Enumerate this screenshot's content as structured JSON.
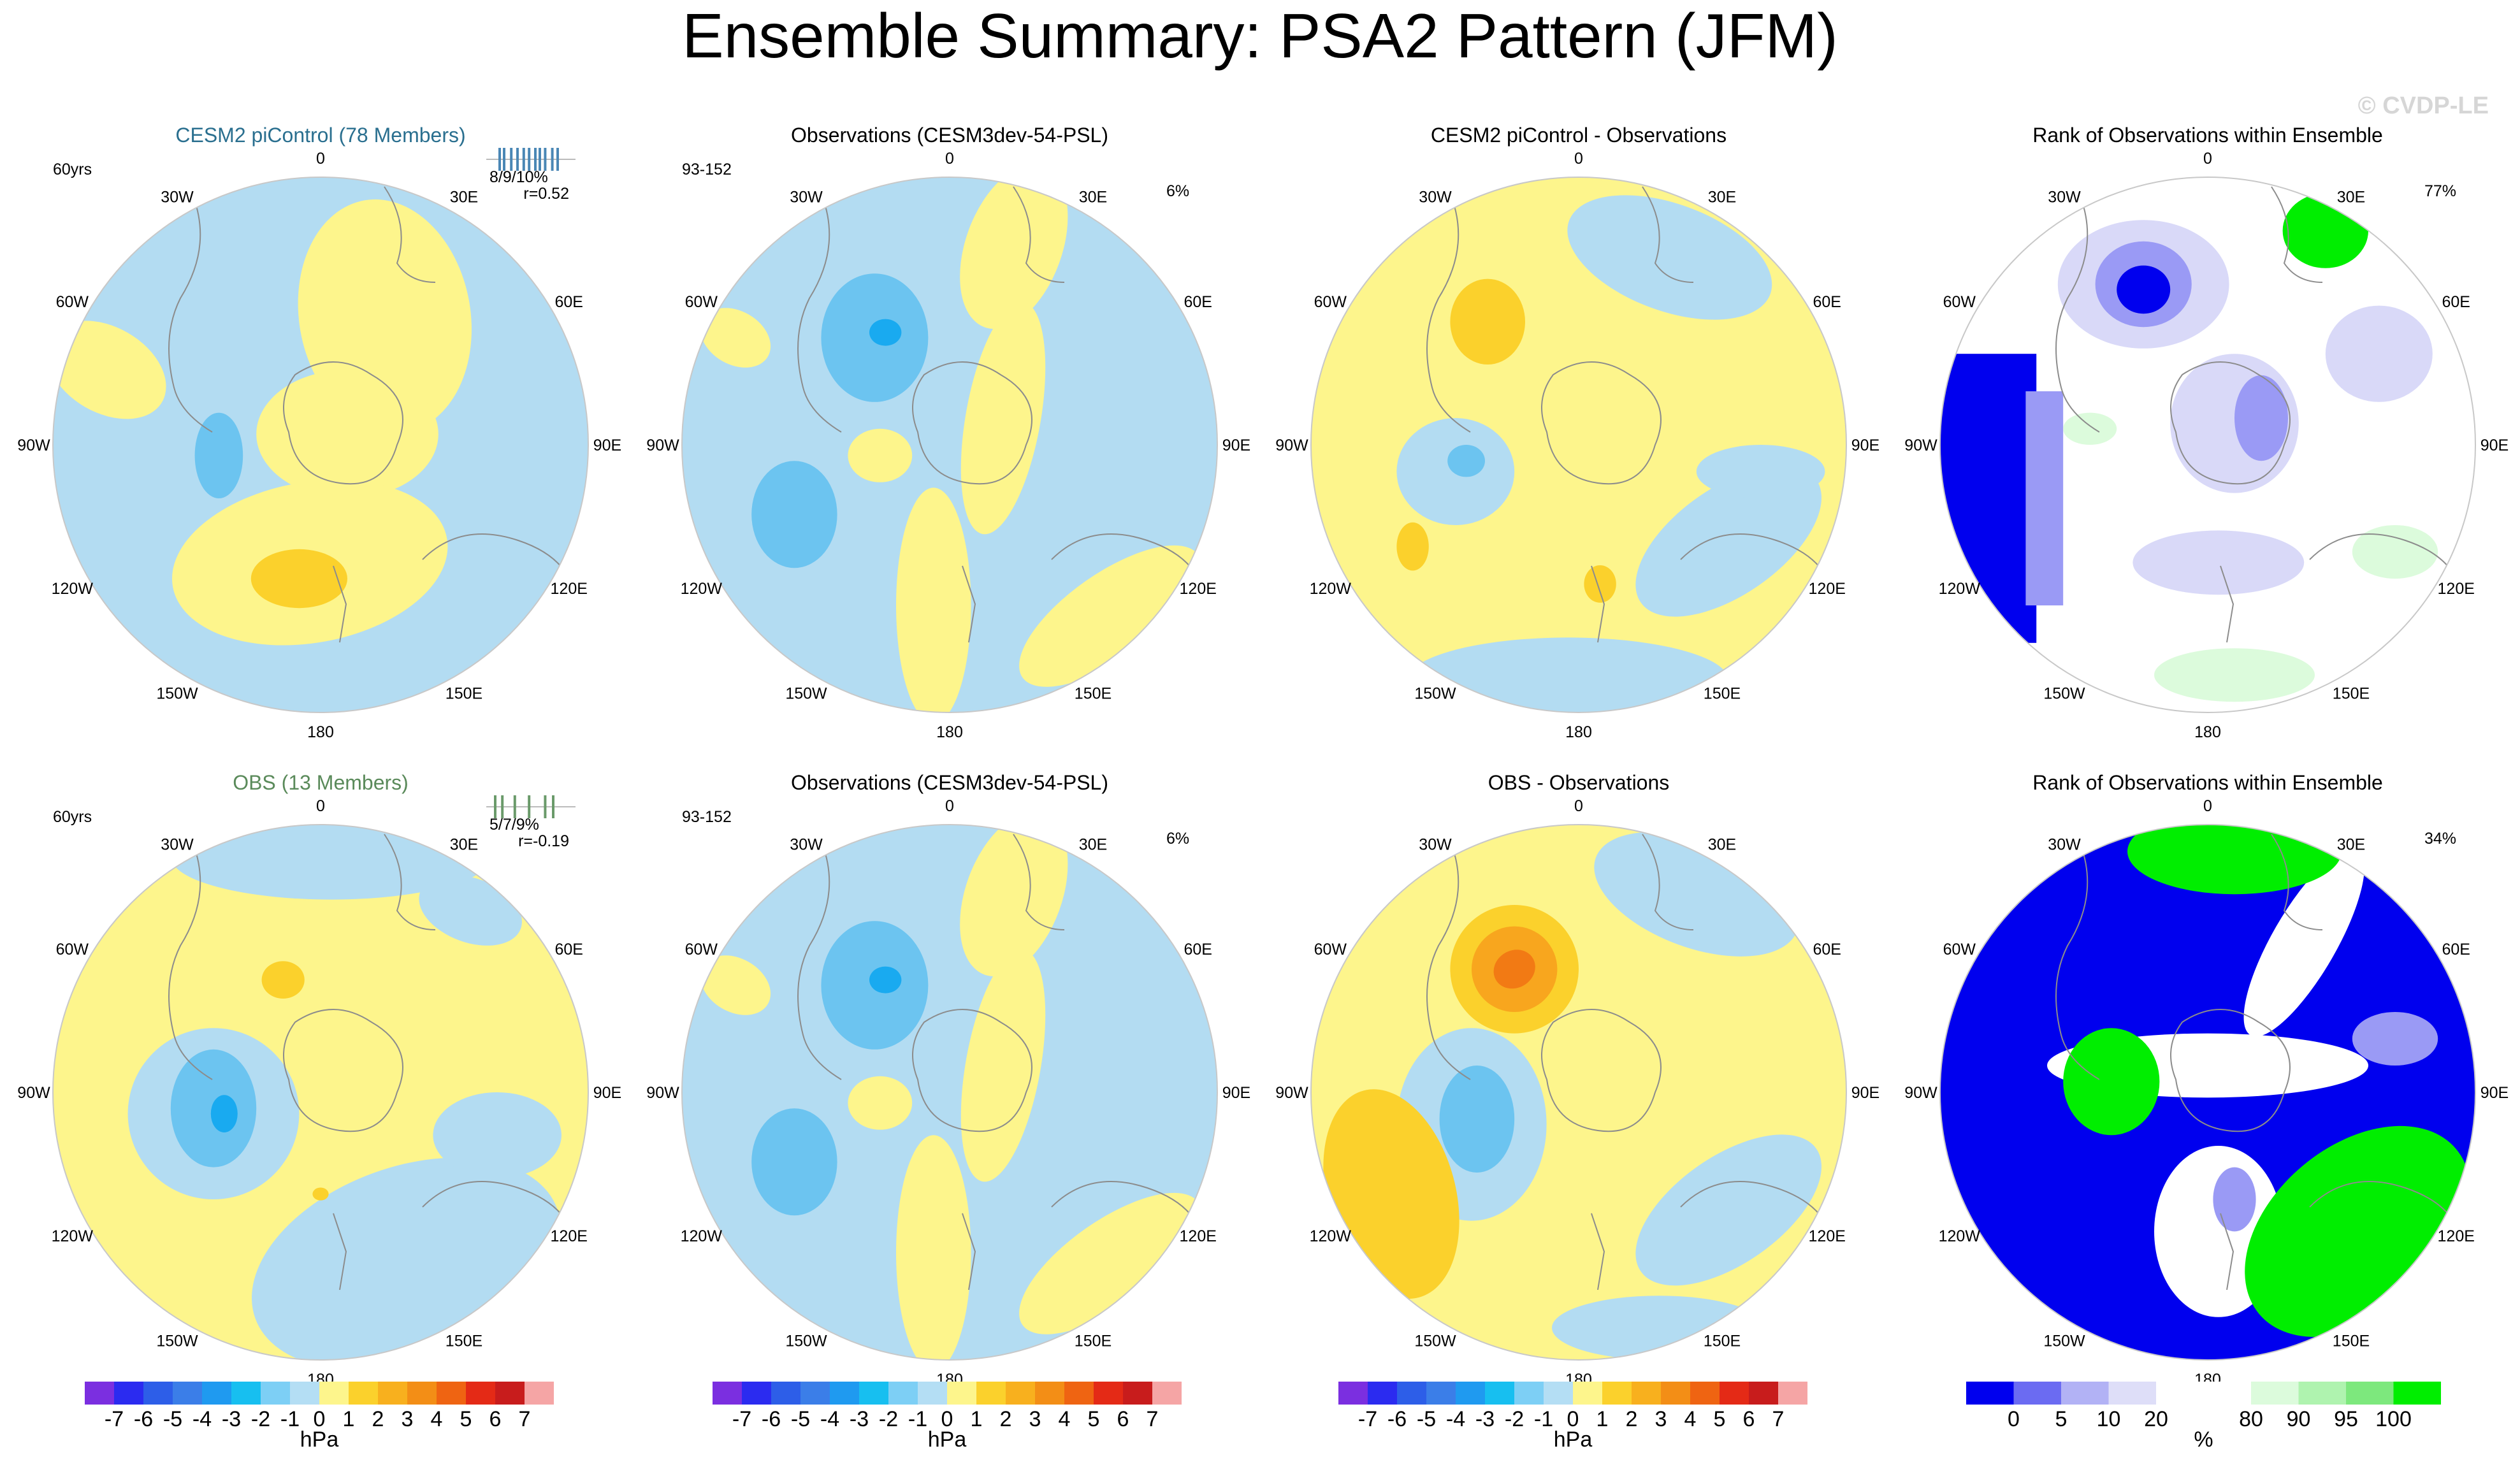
{
  "figure": {
    "title": "Ensemble Summary: PSA2 Pattern (JFM)",
    "watermark": "© CVDP-LE"
  },
  "lon_labels": [
    "0",
    "30E",
    "60E",
    "90E",
    "120E",
    "150E",
    "180",
    "150W",
    "120W",
    "90W",
    "60W",
    "30W"
  ],
  "colors": {
    "neg1": "#b3dcf2",
    "neg2": "#6cc4f0",
    "neg3": "#19aaf0",
    "pos1": "#fdf58c",
    "pos2": "#fbd12c",
    "pos3": "#f8a61e",
    "pos4": "#f27a14",
    "rank_blue": "#0000ee",
    "rank_blue2": "#9a9af5",
    "rank_blue3": "#d9d9f8",
    "rank_green": "#00ee00",
    "rank_green2": "#dcfbdc",
    "coast": "#8c8c8c",
    "title_cesm": "#2a6f8f",
    "title_obs": "#5a8a5a"
  },
  "chart_data": [
    {
      "type": "heatmap",
      "id": "p1",
      "title": "CESM2 piControl (78 Members)",
      "title_color": "#2a6f8f",
      "left_label": "60yrs",
      "right_label": "",
      "fractions": "8/9/10%",
      "corr": "r=0.52",
      "spread_ticks": [
        0.15,
        0.2,
        0.28,
        0.35,
        0.42,
        0.48,
        0.55,
        0.6,
        0.66,
        0.74,
        0.8
      ],
      "spread_color": "#4a87b5",
      "background": "neg1",
      "features": [
        {
          "shape": "ellipse",
          "color": "pos1",
          "cx": 0.62,
          "cy": 0.26,
          "rx": 0.16,
          "ry": 0.22,
          "rot": -10
        },
        {
          "shape": "ellipse",
          "color": "pos1",
          "cx": 0.55,
          "cy": 0.48,
          "rx": 0.17,
          "ry": 0.12,
          "rot": 0
        },
        {
          "shape": "ellipse",
          "color": "pos1",
          "cx": 0.48,
          "cy": 0.72,
          "rx": 0.26,
          "ry": 0.15,
          "rot": -10
        },
        {
          "shape": "ellipse",
          "color": "pos1",
          "cx": 0.1,
          "cy": 0.36,
          "rx": 0.12,
          "ry": 0.08,
          "rot": 30
        },
        {
          "shape": "ellipse",
          "color": "pos2",
          "cx": 0.46,
          "cy": 0.75,
          "rx": 0.09,
          "ry": 0.055,
          "rot": 0
        },
        {
          "shape": "ellipse",
          "color": "neg2",
          "cx": 0.31,
          "cy": 0.52,
          "rx": 0.045,
          "ry": 0.08,
          "rot": 0
        }
      ]
    },
    {
      "type": "heatmap",
      "id": "p2",
      "title": "Observations (CESM3dev-54-PSL)",
      "title_color": "#000000",
      "left_label": "93-152",
      "right_label": "6%",
      "background": "neg1",
      "features": [
        {
          "shape": "ellipse",
          "color": "pos1",
          "cx": 0.62,
          "cy": 0.13,
          "rx": 0.09,
          "ry": 0.16,
          "rot": 20
        },
        {
          "shape": "ellipse",
          "color": "pos1",
          "cx": 0.6,
          "cy": 0.45,
          "rx": 0.07,
          "ry": 0.22,
          "rot": 10
        },
        {
          "shape": "ellipse",
          "color": "pos1",
          "cx": 0.47,
          "cy": 0.8,
          "rx": 0.07,
          "ry": 0.22,
          "rot": 0
        },
        {
          "shape": "ellipse",
          "color": "pos1",
          "cx": 0.8,
          "cy": 0.82,
          "rx": 0.2,
          "ry": 0.08,
          "rot": -35
        },
        {
          "shape": "ellipse",
          "color": "pos1",
          "cx": 0.1,
          "cy": 0.3,
          "rx": 0.07,
          "ry": 0.05,
          "rot": 30
        },
        {
          "shape": "ellipse",
          "color": "pos1",
          "cx": 0.37,
          "cy": 0.52,
          "rx": 0.06,
          "ry": 0.05,
          "rot": 0
        },
        {
          "shape": "ellipse",
          "color": "neg2",
          "cx": 0.36,
          "cy": 0.3,
          "rx": 0.1,
          "ry": 0.12,
          "rot": 0
        },
        {
          "shape": "ellipse",
          "color": "neg3",
          "cx": 0.38,
          "cy": 0.29,
          "rx": 0.03,
          "ry": 0.025,
          "rot": 0
        },
        {
          "shape": "ellipse",
          "color": "neg2",
          "cx": 0.21,
          "cy": 0.63,
          "rx": 0.08,
          "ry": 0.1,
          "rot": 0
        }
      ]
    },
    {
      "type": "heatmap",
      "id": "p3",
      "title": "CESM2 piControl - Observations",
      "title_color": "#000000",
      "left_label": "",
      "right_label": "",
      "background": "pos1",
      "features": [
        {
          "shape": "ellipse",
          "color": "neg1",
          "cx": 0.67,
          "cy": 0.15,
          "rx": 0.2,
          "ry": 0.1,
          "rot": 20
        },
        {
          "shape": "ellipse",
          "color": "neg1",
          "cx": 0.27,
          "cy": 0.55,
          "rx": 0.11,
          "ry": 0.1,
          "rot": 0
        },
        {
          "shape": "ellipse",
          "color": "neg1",
          "cx": 0.78,
          "cy": 0.68,
          "rx": 0.2,
          "ry": 0.1,
          "rot": -35
        },
        {
          "shape": "ellipse",
          "color": "neg1",
          "cx": 0.48,
          "cy": 0.94,
          "rx": 0.3,
          "ry": 0.08,
          "rot": 0
        },
        {
          "shape": "ellipse",
          "color": "neg1",
          "cx": 0.84,
          "cy": 0.55,
          "rx": 0.12,
          "ry": 0.05,
          "rot": 0
        },
        {
          "shape": "ellipse",
          "color": "neg2",
          "cx": 0.29,
          "cy": 0.53,
          "rx": 0.035,
          "ry": 0.03,
          "rot": 0
        },
        {
          "shape": "ellipse",
          "color": "pos2",
          "cx": 0.33,
          "cy": 0.27,
          "rx": 0.07,
          "ry": 0.08,
          "rot": 0
        },
        {
          "shape": "ellipse",
          "color": "pos2",
          "cx": 0.19,
          "cy": 0.69,
          "rx": 0.03,
          "ry": 0.045,
          "rot": 0
        },
        {
          "shape": "ellipse",
          "color": "pos2",
          "cx": 0.54,
          "cy": 0.76,
          "rx": 0.03,
          "ry": 0.035,
          "rot": 0
        }
      ]
    },
    {
      "type": "heatmap",
      "id": "p4",
      "title": "Rank of Observations within Ensemble",
      "title_color": "#000000",
      "left_label": "",
      "right_label": "77%",
      "background": "white",
      "features": [
        {
          "shape": "rect",
          "color": "rank_blue",
          "x": 0.0,
          "y": 0.33,
          "w": 0.18,
          "h": 0.54
        },
        {
          "shape": "rect",
          "color": "rank_blue2",
          "x": 0.16,
          "y": 0.4,
          "w": 0.07,
          "h": 0.4
        },
        {
          "shape": "ellipse",
          "color": "rank_blue3",
          "cx": 0.38,
          "cy": 0.2,
          "rx": 0.16,
          "ry": 0.12,
          "rot": 0
        },
        {
          "shape": "ellipse",
          "color": "rank_blue2",
          "cx": 0.38,
          "cy": 0.2,
          "rx": 0.09,
          "ry": 0.08,
          "rot": 0
        },
        {
          "shape": "ellipse",
          "color": "rank_blue",
          "cx": 0.38,
          "cy": 0.21,
          "rx": 0.05,
          "ry": 0.045,
          "rot": 0
        },
        {
          "shape": "ellipse",
          "color": "rank_blue3",
          "cx": 0.55,
          "cy": 0.46,
          "rx": 0.12,
          "ry": 0.13,
          "rot": 0
        },
        {
          "shape": "ellipse",
          "color": "rank_blue2",
          "cx": 0.6,
          "cy": 0.45,
          "rx": 0.05,
          "ry": 0.08,
          "rot": 0
        },
        {
          "shape": "ellipse",
          "color": "rank_blue3",
          "cx": 0.52,
          "cy": 0.72,
          "rx": 0.16,
          "ry": 0.06,
          "rot": 0
        },
        {
          "shape": "ellipse",
          "color": "rank_blue3",
          "cx": 0.82,
          "cy": 0.33,
          "rx": 0.1,
          "ry": 0.09,
          "rot": 0
        },
        {
          "shape": "ellipse",
          "color": "rank_green",
          "cx": 0.72,
          "cy": 0.1,
          "rx": 0.08,
          "ry": 0.07,
          "rot": 0
        },
        {
          "shape": "ellipse",
          "color": "rank_green2",
          "cx": 0.55,
          "cy": 0.93,
          "rx": 0.15,
          "ry": 0.05,
          "rot": 0
        },
        {
          "shape": "ellipse",
          "color": "rank_green2",
          "cx": 0.85,
          "cy": 0.7,
          "rx": 0.08,
          "ry": 0.05,
          "rot": 0
        },
        {
          "shape": "ellipse",
          "color": "rank_green2",
          "cx": 0.28,
          "cy": 0.47,
          "rx": 0.05,
          "ry": 0.03,
          "rot": 0
        }
      ]
    },
    {
      "type": "heatmap",
      "id": "p5",
      "title": "OBS (13 Members)",
      "title_color": "#5a8a5a",
      "left_label": "60yrs",
      "right_label": "",
      "fractions": "5/7/9%",
      "corr": "r=-0.19",
      "spread_ticks": [
        0.1,
        0.18,
        0.32,
        0.48,
        0.66,
        0.75
      ],
      "spread_color": "#6a9a6a",
      "background": "pos1",
      "features": [
        {
          "shape": "ellipse",
          "color": "neg1",
          "cx": 0.52,
          "cy": 0.06,
          "rx": 0.3,
          "ry": 0.08,
          "rot": 0
        },
        {
          "shape": "ellipse",
          "color": "neg1",
          "cx": 0.78,
          "cy": 0.16,
          "rx": 0.1,
          "ry": 0.06,
          "rot": 20
        },
        {
          "shape": "ellipse",
          "color": "neg1",
          "cx": 0.3,
          "cy": 0.54,
          "rx": 0.16,
          "ry": 0.16,
          "rot": 0
        },
        {
          "shape": "ellipse",
          "color": "neg1",
          "cx": 0.66,
          "cy": 0.82,
          "rx": 0.3,
          "ry": 0.18,
          "rot": -20
        },
        {
          "shape": "ellipse",
          "color": "neg1",
          "cx": 0.83,
          "cy": 0.58,
          "rx": 0.12,
          "ry": 0.08,
          "rot": 0
        },
        {
          "shape": "ellipse",
          "color": "neg2",
          "cx": 0.3,
          "cy": 0.53,
          "rx": 0.08,
          "ry": 0.11,
          "rot": 0
        },
        {
          "shape": "ellipse",
          "color": "neg3",
          "cx": 0.32,
          "cy": 0.54,
          "rx": 0.025,
          "ry": 0.035,
          "rot": 0
        },
        {
          "shape": "ellipse",
          "color": "pos2",
          "cx": 0.43,
          "cy": 0.29,
          "rx": 0.04,
          "ry": 0.035,
          "rot": 0
        },
        {
          "shape": "ellipse",
          "color": "pos2",
          "cx": 0.5,
          "cy": 0.69,
          "rx": 0.015,
          "ry": 0.012,
          "rot": 0
        }
      ]
    },
    {
      "type": "heatmap",
      "id": "p6",
      "title": "Observations (CESM3dev-54-PSL)",
      "title_color": "#000000",
      "left_label": "93-152",
      "right_label": "6%",
      "background": "neg1",
      "features": [
        {
          "shape": "ellipse",
          "color": "pos1",
          "cx": 0.62,
          "cy": 0.13,
          "rx": 0.09,
          "ry": 0.16,
          "rot": 20
        },
        {
          "shape": "ellipse",
          "color": "pos1",
          "cx": 0.6,
          "cy": 0.45,
          "rx": 0.07,
          "ry": 0.22,
          "rot": 10
        },
        {
          "shape": "ellipse",
          "color": "pos1",
          "cx": 0.47,
          "cy": 0.8,
          "rx": 0.07,
          "ry": 0.22,
          "rot": 0
        },
        {
          "shape": "ellipse",
          "color": "pos1",
          "cx": 0.8,
          "cy": 0.82,
          "rx": 0.2,
          "ry": 0.08,
          "rot": -35
        },
        {
          "shape": "ellipse",
          "color": "pos1",
          "cx": 0.1,
          "cy": 0.3,
          "rx": 0.07,
          "ry": 0.05,
          "rot": 30
        },
        {
          "shape": "ellipse",
          "color": "pos1",
          "cx": 0.37,
          "cy": 0.52,
          "rx": 0.06,
          "ry": 0.05,
          "rot": 0
        },
        {
          "shape": "ellipse",
          "color": "neg2",
          "cx": 0.36,
          "cy": 0.3,
          "rx": 0.1,
          "ry": 0.12,
          "rot": 0
        },
        {
          "shape": "ellipse",
          "color": "neg3",
          "cx": 0.38,
          "cy": 0.29,
          "rx": 0.03,
          "ry": 0.025,
          "rot": 0
        },
        {
          "shape": "ellipse",
          "color": "neg2",
          "cx": 0.21,
          "cy": 0.63,
          "rx": 0.08,
          "ry": 0.1,
          "rot": 0
        }
      ]
    },
    {
      "type": "heatmap",
      "id": "p7",
      "title": "OBS - Observations",
      "title_color": "#000000",
      "left_label": "",
      "right_label": "",
      "background": "pos1",
      "features": [
        {
          "shape": "ellipse",
          "color": "neg1",
          "cx": 0.72,
          "cy": 0.13,
          "rx": 0.2,
          "ry": 0.1,
          "rot": 20
        },
        {
          "shape": "ellipse",
          "color": "neg1",
          "cx": 0.3,
          "cy": 0.56,
          "rx": 0.14,
          "ry": 0.18,
          "rot": 0
        },
        {
          "shape": "ellipse",
          "color": "neg1",
          "cx": 0.78,
          "cy": 0.72,
          "rx": 0.2,
          "ry": 0.1,
          "rot": -35
        },
        {
          "shape": "ellipse",
          "color": "neg1",
          "cx": 0.65,
          "cy": 0.94,
          "rx": 0.2,
          "ry": 0.06,
          "rot": 0
        },
        {
          "shape": "ellipse",
          "color": "neg2",
          "cx": 0.31,
          "cy": 0.55,
          "rx": 0.07,
          "ry": 0.1,
          "rot": 0
        },
        {
          "shape": "ellipse",
          "color": "pos2",
          "cx": 0.38,
          "cy": 0.27,
          "rx": 0.12,
          "ry": 0.12,
          "rot": 0
        },
        {
          "shape": "ellipse",
          "color": "pos3",
          "cx": 0.38,
          "cy": 0.27,
          "rx": 0.08,
          "ry": 0.08,
          "rot": 0
        },
        {
          "shape": "ellipse",
          "color": "pos4",
          "cx": 0.38,
          "cy": 0.27,
          "rx": 0.04,
          "ry": 0.035,
          "rot": -30
        },
        {
          "shape": "ellipse",
          "color": "pos2",
          "cx": 0.15,
          "cy": 0.69,
          "rx": 0.12,
          "ry": 0.2,
          "rot": -15
        }
      ]
    },
    {
      "type": "heatmap",
      "id": "p8",
      "title": "Rank of Observations within Ensemble",
      "title_color": "#000000",
      "left_label": "",
      "right_label": "34%",
      "background": "rank_blue",
      "features": [
        {
          "shape": "ellipse",
          "color": "white",
          "cx": 0.5,
          "cy": 0.45,
          "rx": 0.3,
          "ry": 0.06,
          "rot": 0
        },
        {
          "shape": "ellipse",
          "color": "white",
          "cx": 0.52,
          "cy": 0.76,
          "rx": 0.12,
          "ry": 0.16,
          "rot": 0
        },
        {
          "shape": "ellipse",
          "color": "white",
          "cx": 0.68,
          "cy": 0.22,
          "rx": 0.06,
          "ry": 0.2,
          "rot": 30
        },
        {
          "shape": "ellipse",
          "color": "rank_green",
          "cx": 0.55,
          "cy": 0.05,
          "rx": 0.2,
          "ry": 0.08,
          "rot": 0
        },
        {
          "shape": "ellipse",
          "color": "rank_green",
          "cx": 0.32,
          "cy": 0.48,
          "rx": 0.09,
          "ry": 0.1,
          "rot": 0
        },
        {
          "shape": "ellipse",
          "color": "rank_green",
          "cx": 0.78,
          "cy": 0.76,
          "rx": 0.24,
          "ry": 0.16,
          "rot": -40
        },
        {
          "shape": "ellipse",
          "color": "rank_blue2",
          "cx": 0.55,
          "cy": 0.7,
          "rx": 0.04,
          "ry": 0.06,
          "rot": 0
        },
        {
          "shape": "ellipse",
          "color": "rank_blue2",
          "cx": 0.85,
          "cy": 0.4,
          "rx": 0.08,
          "ry": 0.05,
          "rot": 0
        }
      ]
    }
  ],
  "colorbar_hpa": {
    "unit": "hPa",
    "colors": [
      "#7b2fe0",
      "#2b2bf0",
      "#2d5ee8",
      "#3b7ee8",
      "#1f9af0",
      "#17bff0",
      "#7dcff5",
      "#b4def4",
      "#fdf58c",
      "#fbd12c",
      "#f8b01e",
      "#f38e16",
      "#ef6412",
      "#e42a16",
      "#c81c1c",
      "#f5a5a5"
    ],
    "labels": [
      "-7",
      "-6",
      "-5",
      "-4",
      "-3",
      "-2",
      "-1",
      "0",
      "1",
      "2",
      "3",
      "4",
      "5",
      "6",
      "7"
    ]
  },
  "colorbar_rank": {
    "unit": "%",
    "colors": [
      "#0000ee",
      "#6b6bf2",
      "#b2b2f5",
      "#dedef8",
      "#ffffff",
      "#ffffff",
      "#dcfbdc",
      "#aff3af",
      "#7de87d",
      "#00ee00"
    ],
    "labels": [
      "0",
      "5",
      "10",
      "20",
      "80",
      "90",
      "95",
      "100"
    ],
    "label_index": [
      1,
      2,
      3,
      4,
      6,
      7,
      8,
      9
    ]
  }
}
